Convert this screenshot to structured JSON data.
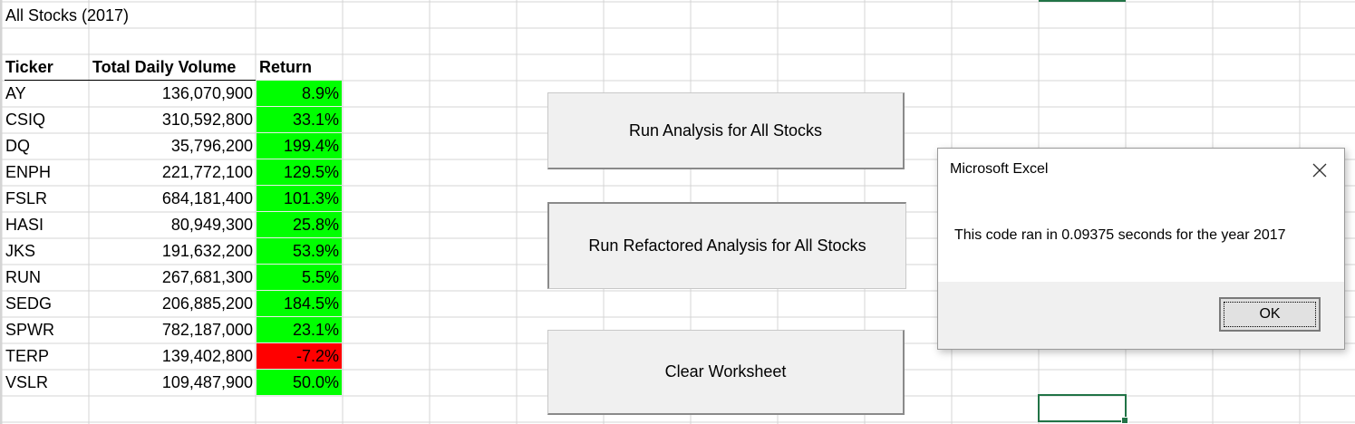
{
  "sheet": {
    "title": "All Stocks (2017)",
    "headers": {
      "ticker": "Ticker",
      "volume": "Total Daily Volume",
      "return": "Return"
    },
    "rows": [
      {
        "ticker": "AY",
        "volume": "136,070,900",
        "return": "8.9%",
        "status": "positive"
      },
      {
        "ticker": "CSIQ",
        "volume": "310,592,800",
        "return": "33.1%",
        "status": "positive"
      },
      {
        "ticker": "DQ",
        "volume": "35,796,200",
        "return": "199.4%",
        "status": "positive"
      },
      {
        "ticker": "ENPH",
        "volume": "221,772,100",
        "return": "129.5%",
        "status": "positive"
      },
      {
        "ticker": "FSLR",
        "volume": "684,181,400",
        "return": "101.3%",
        "status": "positive"
      },
      {
        "ticker": "HASI",
        "volume": "80,949,300",
        "return": "25.8%",
        "status": "positive"
      },
      {
        "ticker": "JKS",
        "volume": "191,632,200",
        "return": "53.9%",
        "status": "positive"
      },
      {
        "ticker": "RUN",
        "volume": "267,681,300",
        "return": "5.5%",
        "status": "positive"
      },
      {
        "ticker": "SEDG",
        "volume": "206,885,200",
        "return": "184.5%",
        "status": "positive"
      },
      {
        "ticker": "SPWR",
        "volume": "782,187,000",
        "return": "23.1%",
        "status": "positive"
      },
      {
        "ticker": "TERP",
        "volume": "139,402,800",
        "return": "-7.2%",
        "status": "negative"
      },
      {
        "ticker": "VSLR",
        "volume": "109,487,900",
        "return": "50.0%",
        "status": "positive"
      }
    ]
  },
  "buttons": {
    "run_all": "Run Analysis for All Stocks",
    "run_refactored": "Run Refactored Analysis for All Stocks",
    "clear": "Clear Worksheet"
  },
  "dialog": {
    "title": "Microsoft Excel",
    "message": "This code ran in 0.09375 seconds for the year 2017",
    "ok_label": "OK",
    "close_icon": "close-icon"
  },
  "colors": {
    "positive_fill": "#00ff00",
    "negative_fill": "#ff0000",
    "gridline": "#d4d4d4",
    "selection": "#217346"
  }
}
